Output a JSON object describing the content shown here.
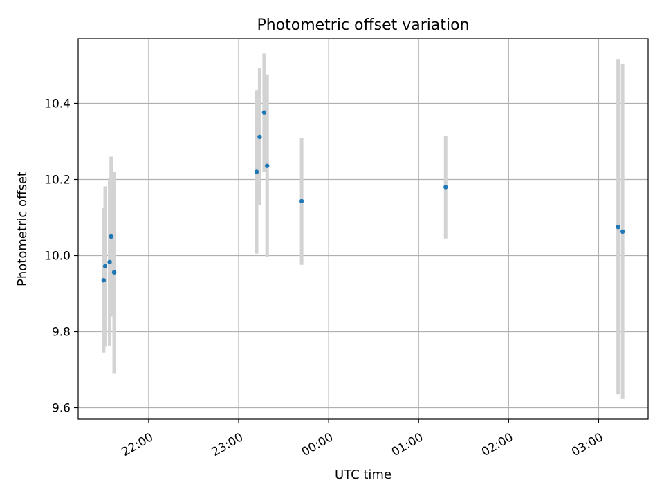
{
  "chart_data": {
    "type": "scatter",
    "title": "Photometric offset variation",
    "xlabel": "UTC time",
    "ylabel": "Photometric offset",
    "x_ticks": [
      "22:00",
      "23:00",
      "00:00",
      "01:00",
      "02:00",
      "03:00"
    ],
    "y_ticks": [
      "9.6",
      "9.8",
      "10.0",
      "10.2",
      "10.4"
    ],
    "xlim": [
      "21:13",
      "03:33"
    ],
    "ylim": [
      9.57,
      10.57
    ],
    "grid": true,
    "colors": {
      "point": "#1f77b4",
      "errorbar": "#d3d3d3",
      "grid": "#b0b0b0"
    },
    "points": [
      {
        "t": "21:30",
        "y": 9.935,
        "err": 0.19
      },
      {
        "t": "21:31",
        "y": 9.972,
        "err": 0.21
      },
      {
        "t": "21:34",
        "y": 9.983,
        "err": 0.22
      },
      {
        "t": "21:35",
        "y": 10.05,
        "err": 0.21
      },
      {
        "t": "21:37",
        "y": 9.956,
        "err": 0.265
      },
      {
        "t": "23:12",
        "y": 10.22,
        "err": 0.215
      },
      {
        "t": "23:14",
        "y": 10.312,
        "err": 0.18
      },
      {
        "t": "23:17",
        "y": 10.376,
        "err": 0.155
      },
      {
        "t": "23:19",
        "y": 10.236,
        "err": 0.24
      },
      {
        "t": "23:42",
        "y": 10.143,
        "err": 0.167
      },
      {
        "t": "01:18",
        "y": 10.18,
        "err": 0.135
      },
      {
        "t": "03:13",
        "y": 10.075,
        "err": 0.44
      },
      {
        "t": "03:16",
        "y": 10.063,
        "err": 0.44
      }
    ]
  }
}
